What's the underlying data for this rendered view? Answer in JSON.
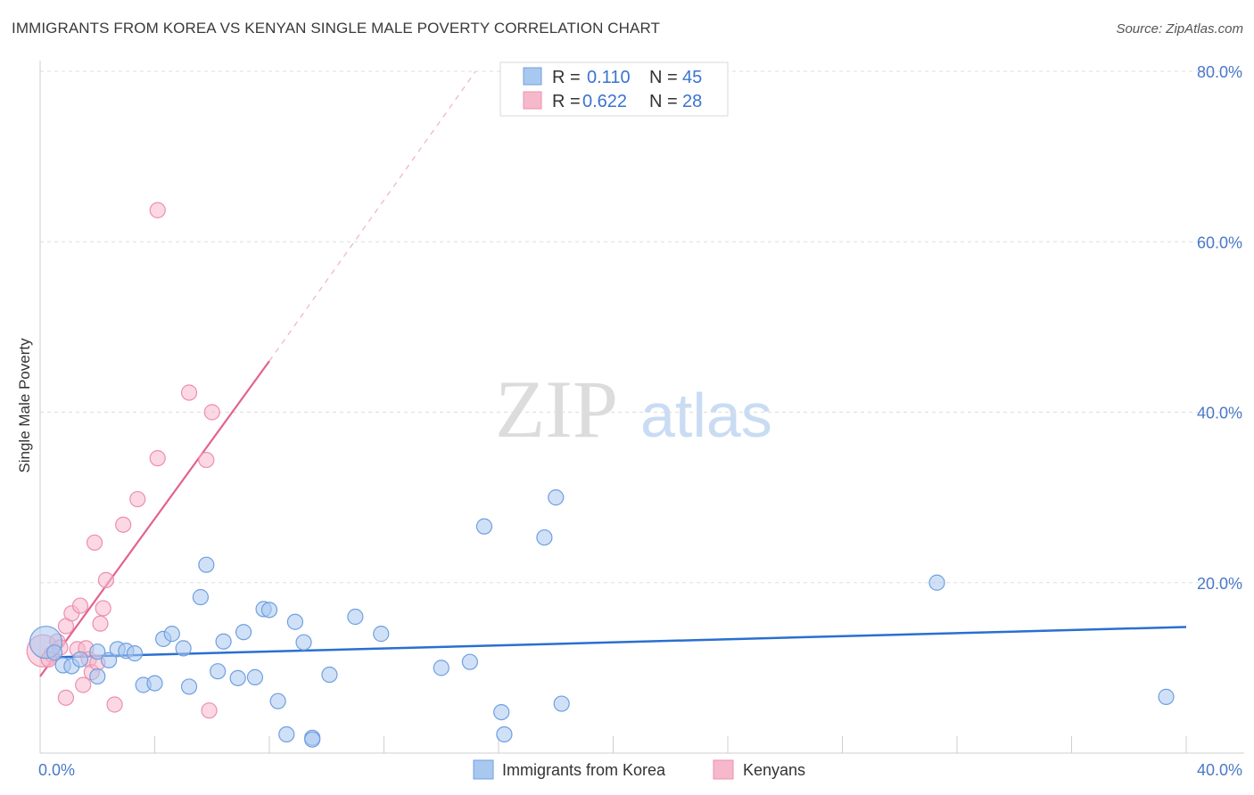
{
  "title": "IMMIGRANTS FROM KOREA VS KENYAN SINGLE MALE POVERTY CORRELATION CHART",
  "source": "Source: ZipAtlas.com",
  "watermark": {
    "zip": "ZIP",
    "atlas": "atlas"
  },
  "colors": {
    "blue_fill": "#a9c8f0",
    "blue_stroke": "#6f9fe0",
    "blue_line": "#2a6fd0",
    "pink_fill": "#f7b8cc",
    "pink_stroke": "#ec8fae",
    "pink_line": "#e4628c",
    "tick_text": "#4a78c8",
    "grid": "#dddddd"
  },
  "legend": {
    "rows": [
      {
        "r_label": "R = ",
        "r_value": "0.110",
        "n_label": "N = ",
        "n_value": "45"
      },
      {
        "r_label": "R = ",
        "r_value": "0.622",
        "n_label": "N = ",
        "n_value": "28"
      }
    ]
  },
  "chart_data": {
    "type": "scatter",
    "title": "IMMIGRANTS FROM KOREA VS KENYAN SINGLE MALE POVERTY CORRELATION CHART",
    "xlabel": "",
    "ylabel": "Single Male Poverty",
    "xlim": [
      0,
      40
    ],
    "ylim": [
      0,
      80
    ],
    "x_tick_labels": [
      "0.0%",
      "40.0%"
    ],
    "y_tick_values": [
      20,
      40,
      60,
      80
    ],
    "y_tick_labels": [
      "20.0%",
      "40.0%",
      "60.0%",
      "80.0%"
    ],
    "series": [
      {
        "name": "Immigrants from Korea",
        "r": 0.11,
        "n": 45,
        "trend": {
          "x0": 0,
          "y0": 11.2,
          "x1": 40,
          "y1": 14.8
        },
        "points": [
          {
            "x": 0.2,
            "y": 13.0,
            "big": true
          },
          {
            "x": 0.5,
            "y": 11.8
          },
          {
            "x": 0.8,
            "y": 10.3
          },
          {
            "x": 1.1,
            "y": 10.2
          },
          {
            "x": 1.4,
            "y": 11.0
          },
          {
            "x": 2.0,
            "y": 11.9
          },
          {
            "x": 2.0,
            "y": 9.0
          },
          {
            "x": 2.4,
            "y": 10.9
          },
          {
            "x": 2.7,
            "y": 12.2
          },
          {
            "x": 3.0,
            "y": 12.0
          },
          {
            "x": 3.3,
            "y": 11.7
          },
          {
            "x": 3.6,
            "y": 8.0
          },
          {
            "x": 4.0,
            "y": 8.2
          },
          {
            "x": 4.3,
            "y": 13.4
          },
          {
            "x": 4.6,
            "y": 14.0
          },
          {
            "x": 5.0,
            "y": 12.3
          },
          {
            "x": 5.2,
            "y": 7.8
          },
          {
            "x": 5.6,
            "y": 18.3
          },
          {
            "x": 5.8,
            "y": 22.1
          },
          {
            "x": 6.2,
            "y": 9.6
          },
          {
            "x": 6.4,
            "y": 13.1
          },
          {
            "x": 6.9,
            "y": 8.8
          },
          {
            "x": 7.1,
            "y": 14.2
          },
          {
            "x": 7.5,
            "y": 8.9
          },
          {
            "x": 7.8,
            "y": 16.9
          },
          {
            "x": 8.0,
            "y": 16.8
          },
          {
            "x": 8.3,
            "y": 6.1
          },
          {
            "x": 8.6,
            "y": 2.2
          },
          {
            "x": 8.9,
            "y": 15.4
          },
          {
            "x": 9.2,
            "y": 13.0
          },
          {
            "x": 9.5,
            "y": 1.8
          },
          {
            "x": 10.1,
            "y": 9.2
          },
          {
            "x": 11.0,
            "y": 16.0
          },
          {
            "x": 11.9,
            "y": 14.0
          },
          {
            "x": 14.0,
            "y": 10.0
          },
          {
            "x": 15.0,
            "y": 10.7
          },
          {
            "x": 15.5,
            "y": 26.6
          },
          {
            "x": 16.1,
            "y": 4.8
          },
          {
            "x": 16.2,
            "y": 2.2
          },
          {
            "x": 17.6,
            "y": 25.3
          },
          {
            "x": 18.0,
            "y": 30.0
          },
          {
            "x": 18.2,
            "y": 5.8
          },
          {
            "x": 31.3,
            "y": 20.0
          },
          {
            "x": 39.3,
            "y": 6.6
          },
          {
            "x": 9.5,
            "y": 1.6
          }
        ]
      },
      {
        "name": "Kenyans",
        "r": 0.622,
        "n": 28,
        "trend": {
          "x0": 0,
          "y0": 9.0,
          "x1": 8.0,
          "y1": 46.0
        },
        "trend_ext": {
          "x0": 8.0,
          "y0": 46.0,
          "x1": 15.2,
          "y1": 80.0
        },
        "points": [
          {
            "x": 0.1,
            "y": 12.0,
            "big": true
          },
          {
            "x": 0.4,
            "y": 11.6
          },
          {
            "x": 0.6,
            "y": 13.1
          },
          {
            "x": 0.7,
            "y": 12.4
          },
          {
            "x": 0.9,
            "y": 6.5
          },
          {
            "x": 0.9,
            "y": 14.9
          },
          {
            "x": 1.1,
            "y": 16.4
          },
          {
            "x": 1.3,
            "y": 12.2
          },
          {
            "x": 1.4,
            "y": 17.3
          },
          {
            "x": 1.5,
            "y": 8.0
          },
          {
            "x": 1.6,
            "y": 12.3
          },
          {
            "x": 1.7,
            "y": 11.0
          },
          {
            "x": 1.8,
            "y": 9.5
          },
          {
            "x": 1.9,
            "y": 24.7
          },
          {
            "x": 2.0,
            "y": 10.6
          },
          {
            "x": 2.1,
            "y": 15.2
          },
          {
            "x": 2.2,
            "y": 17.0
          },
          {
            "x": 2.3,
            "y": 20.3
          },
          {
            "x": 2.6,
            "y": 5.7
          },
          {
            "x": 2.9,
            "y": 26.8
          },
          {
            "x": 3.4,
            "y": 29.8
          },
          {
            "x": 4.1,
            "y": 34.6
          },
          {
            "x": 4.1,
            "y": 63.7
          },
          {
            "x": 5.2,
            "y": 42.3
          },
          {
            "x": 5.8,
            "y": 34.4
          },
          {
            "x": 5.9,
            "y": 5.0
          },
          {
            "x": 6.0,
            "y": 40.0
          },
          {
            "x": 0.3,
            "y": 11.0
          }
        ]
      }
    ]
  }
}
